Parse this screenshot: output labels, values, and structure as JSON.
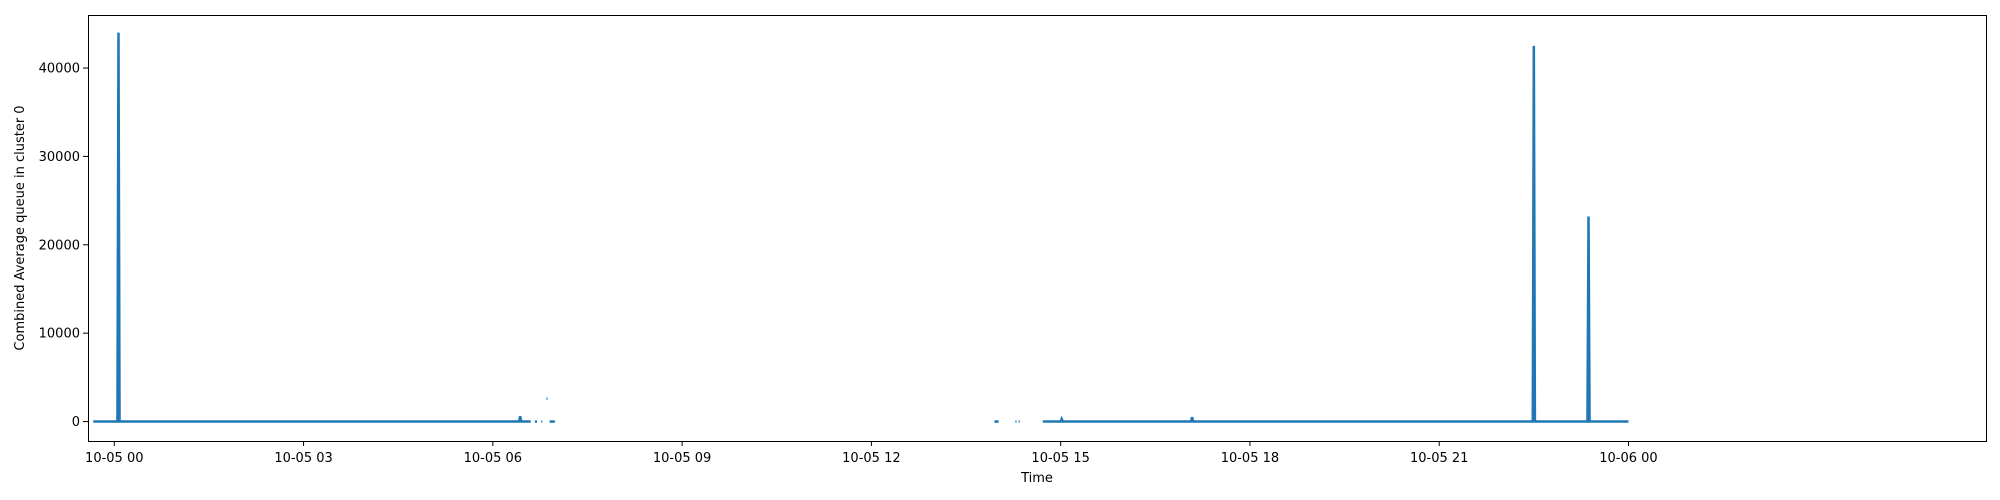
{
  "chart_data": {
    "type": "line",
    "title": "",
    "xlabel": "Time",
    "ylabel": "Combined Average queue in cluster 0",
    "grid": false,
    "legend": "none",
    "xlim": [
      "2023-10-04 23:35",
      "2023-10-06 05:40"
    ],
    "ylim": [
      -2200,
      46000
    ],
    "x_ticks": [
      {
        "time": "2023-10-05 00:00",
        "label": "10-05 00"
      },
      {
        "time": "2023-10-05 03:00",
        "label": "10-05 03"
      },
      {
        "time": "2023-10-05 06:00",
        "label": "10-05 06"
      },
      {
        "time": "2023-10-05 09:00",
        "label": "10-05 09"
      },
      {
        "time": "2023-10-05 12:00",
        "label": "10-05 12"
      },
      {
        "time": "2023-10-05 15:00",
        "label": "10-05 15"
      },
      {
        "time": "2023-10-05 18:00",
        "label": "10-05 18"
      },
      {
        "time": "2023-10-05 21:00",
        "label": "10-05 21"
      },
      {
        "time": "2023-10-06 00:00",
        "label": "10-06 00"
      }
    ],
    "y_ticks": [
      0,
      10000,
      20000,
      30000,
      40000
    ],
    "series": [
      {
        "color": "#1f77b4",
        "segments": [
          [
            {
              "time": "2023-10-04 23:40",
              "y": 0
            },
            {
              "time": "2023-10-05 00:03",
              "y": 0
            },
            {
              "time": "2023-10-05 00:04",
              "y": 44000
            },
            {
              "time": "2023-10-05 00:05",
              "y": 0
            },
            {
              "time": "2023-10-05 06:25",
              "y": 0
            },
            {
              "time": "2023-10-05 06:26",
              "y": 600
            },
            {
              "time": "2023-10-05 06:27",
              "y": 0
            },
            {
              "time": "2023-10-05 06:36",
              "y": 0
            }
          ],
          [
            {
              "time": "2023-10-05 06:40",
              "y": 0
            },
            {
              "time": "2023-10-05 06:42",
              "y": 0
            }
          ],
          [
            {
              "time": "2023-10-05 06:46",
              "y": 0
            },
            {
              "time": "2023-10-05 06:47",
              "y": 0
            }
          ],
          [
            {
              "time": "2023-10-05 06:51",
              "y": 2600
            },
            {
              "time": "2023-10-05 06:52",
              "y": 2600
            }
          ],
          [
            {
              "time": "2023-10-05 06:54",
              "y": 0
            },
            {
              "time": "2023-10-05 06:59",
              "y": 0
            }
          ],
          [
            {
              "time": "2023-10-05 13:57",
              "y": 0
            },
            {
              "time": "2023-10-05 14:01",
              "y": 0
            }
          ],
          [
            {
              "time": "2023-10-05 14:17",
              "y": 0
            },
            {
              "time": "2023-10-05 14:18",
              "y": 0
            }
          ],
          [
            {
              "time": "2023-10-05 14:20",
              "y": 0
            },
            {
              "time": "2023-10-05 14:21",
              "y": 0
            }
          ],
          [
            {
              "time": "2023-10-05 14:43",
              "y": 0
            },
            {
              "time": "2023-10-05 15:00",
              "y": 0
            },
            {
              "time": "2023-10-05 15:01",
              "y": 300
            },
            {
              "time": "2023-10-05 15:02",
              "y": 0
            },
            {
              "time": "2023-10-05 17:04",
              "y": 0
            },
            {
              "time": "2023-10-05 17:05",
              "y": 500
            },
            {
              "time": "2023-10-05 17:06",
              "y": 0
            },
            {
              "time": "2023-10-05 22:29",
              "y": 0
            },
            {
              "time": "2023-10-05 22:30",
              "y": 42500
            },
            {
              "time": "2023-10-05 22:31",
              "y": 0
            },
            {
              "time": "2023-10-05 23:21",
              "y": 0
            },
            {
              "time": "2023-10-05 23:22",
              "y": 23200
            },
            {
              "time": "2023-10-05 23:23",
              "y": 0
            },
            {
              "time": "2023-10-06 00:00",
              "y": 0
            }
          ]
        ]
      }
    ]
  }
}
